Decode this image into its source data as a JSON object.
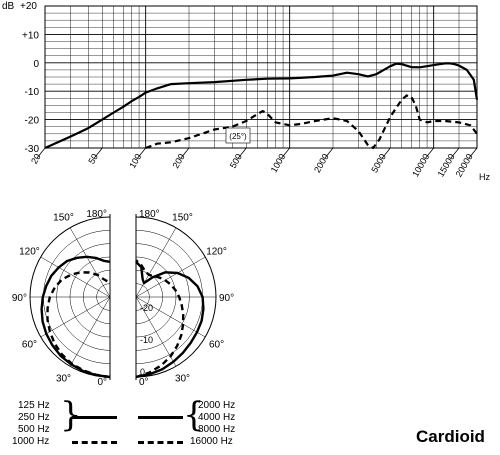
{
  "chart_data": [
    {
      "type": "line",
      "xscale": "log",
      "xlabel": "Hz",
      "ylabel": "dB",
      "ylim": [
        -30,
        20
      ],
      "xlim": [
        20,
        20000
      ],
      "x_tick_labels": [
        "20",
        "50",
        "100",
        "200",
        "500",
        "1000",
        "2000",
        "5000",
        "10000",
        "15000",
        "20000"
      ],
      "y_tick_labels": [
        "+20",
        "+10",
        "0",
        "-10",
        "-20",
        "-30"
      ],
      "grid": true,
      "annotation": "(25°)",
      "series": [
        {
          "name": "",
          "style": "solid",
          "points": [
            [
              20,
              -30
            ],
            [
              30,
              -26
            ],
            [
              40,
              -23
            ],
            [
              50,
              -20
            ],
            [
              60,
              -17.5
            ],
            [
              70,
              -15.5
            ],
            [
              80,
              -13.5
            ],
            [
              90,
              -12
            ],
            [
              100,
              -10.5
            ],
            [
              120,
              -9
            ],
            [
              150,
              -7.5
            ],
            [
              200,
              -7.2
            ],
            [
              300,
              -6.8
            ],
            [
              500,
              -6
            ],
            [
              700,
              -5.6
            ],
            [
              1000,
              -5.5
            ],
            [
              1500,
              -5
            ],
            [
              2000,
              -4.5
            ],
            [
              2500,
              -3.5
            ],
            [
              3000,
              -4
            ],
            [
              3500,
              -4.8
            ],
            [
              4000,
              -4
            ],
            [
              5000,
              -1.2
            ],
            [
              5500,
              -0.3
            ],
            [
              6000,
              -0.5
            ],
            [
              7000,
              -1.5
            ],
            [
              8000,
              -1.6
            ],
            [
              9000,
              -1.2
            ],
            [
              10000,
              -0.8
            ],
            [
              11000,
              -0.5
            ],
            [
              12000,
              -0.2
            ],
            [
              13000,
              -0.2
            ],
            [
              14000,
              -0.5
            ],
            [
              15000,
              -1
            ],
            [
              17000,
              -2.5
            ],
            [
              19000,
              -6
            ],
            [
              20000,
              -13
            ]
          ]
        },
        {
          "name": "",
          "style": "dashed",
          "points": [
            [
              100,
              -30
            ],
            [
              120,
              -28.5
            ],
            [
              150,
              -28
            ],
            [
              200,
              -26.5
            ],
            [
              300,
              -23.5
            ],
            [
              400,
              -22.5
            ],
            [
              500,
              -20.5
            ],
            [
              600,
              -18
            ],
            [
              650,
              -17
            ],
            [
              700,
              -18
            ],
            [
              800,
              -21
            ],
            [
              1000,
              -22
            ],
            [
              1200,
              -21.5
            ],
            [
              1500,
              -20.5
            ],
            [
              2000,
              -19.5
            ],
            [
              2500,
              -20.5
            ],
            [
              3000,
              -24
            ],
            [
              3500,
              -29
            ],
            [
              3800,
              -30
            ],
            [
              4200,
              -27
            ],
            [
              5000,
              -19
            ],
            [
              6000,
              -13
            ],
            [
              6500,
              -11.5
            ],
            [
              7000,
              -12
            ],
            [
              7500,
              -15
            ],
            [
              8000,
              -20
            ],
            [
              9000,
              -21
            ],
            [
              10000,
              -20.5
            ],
            [
              12000,
              -20.5
            ],
            [
              15000,
              -21
            ],
            [
              18000,
              -22
            ],
            [
              20000,
              -25
            ]
          ]
        }
      ]
    },
    {
      "type": "polar",
      "angle_labels": [
        "180°",
        "150°",
        "120°",
        "90°",
        "60°",
        "30°",
        "0°"
      ],
      "ring_labels": [
        "-20",
        "-10",
        "0"
      ],
      "rlim": [
        -25,
        0
      ],
      "legend_groups": [
        {
          "frequencies": [
            "125 Hz",
            "250 Hz",
            "500 Hz"
          ],
          "style": "solid"
        },
        {
          "frequencies": [
            "1000 Hz"
          ],
          "style": "dashed"
        },
        {
          "frequencies": [
            "2000 Hz",
            "4000 Hz",
            "8000 Hz"
          ],
          "style": "solid"
        },
        {
          "frequencies": [
            "16000 Hz"
          ],
          "style": "dashed"
        }
      ],
      "series": [
        {
          "name": "125 Hz",
          "style": "solid",
          "side": "left",
          "angles_deg": [
            0,
            10,
            20,
            30,
            40,
            50,
            60,
            70,
            80,
            90,
            100,
            110,
            120,
            130,
            140,
            150,
            160,
            170,
            180
          ],
          "values_db": [
            0,
            -0.2,
            -0.4,
            -0.7,
            -1,
            -1.5,
            -2,
            -2.6,
            -3.3,
            -4,
            -4.8,
            -5.5,
            -6.5,
            -7.5,
            -9,
            -10.5,
            -12,
            -13.5,
            -14
          ]
        },
        {
          "name": "1000 Hz",
          "style": "dashed",
          "side": "left",
          "angles_deg": [
            0,
            10,
            20,
            30,
            40,
            50,
            60,
            70,
            80,
            90,
            100,
            110,
            120,
            130,
            140,
            150,
            160,
            170,
            180
          ],
          "values_db": [
            0,
            -0.3,
            -0.6,
            -1,
            -1.6,
            -2.4,
            -3.3,
            -4.2,
            -5.2,
            -6.2,
            -7.5,
            -9,
            -11,
            -13,
            -15,
            -17,
            -19,
            -20,
            -20.5
          ]
        },
        {
          "name": "8000 Hz",
          "style": "solid",
          "side": "right",
          "angles_deg": [
            0,
            10,
            20,
            30,
            40,
            50,
            60,
            70,
            80,
            90,
            100,
            110,
            120,
            130,
            140,
            150,
            160,
            170,
            180
          ],
          "values_db": [
            0,
            -0.5,
            -1,
            -1.6,
            -2.2,
            -2.7,
            -3,
            -3.2,
            -3.6,
            -4.2,
            -5.5,
            -7.5,
            -10,
            -13,
            -17,
            -20,
            -19,
            -15.5,
            -14
          ]
        },
        {
          "name": "16000 Hz",
          "style": "dashed",
          "side": "right",
          "angles_deg": [
            0,
            10,
            20,
            30,
            40,
            50,
            60,
            70,
            80,
            90,
            100,
            110,
            120,
            130,
            140,
            150,
            160,
            170,
            180
          ],
          "values_db": [
            0,
            -1,
            -2.2,
            -3.5,
            -5,
            -6.5,
            -8,
            -9.3,
            -10.5,
            -11.5,
            -12.5,
            -13.5,
            -14.5,
            -15.5,
            -16.5,
            -17,
            -16.5,
            -15,
            -13.5
          ]
        }
      ]
    }
  ],
  "pattern_label": "Cardioid"
}
